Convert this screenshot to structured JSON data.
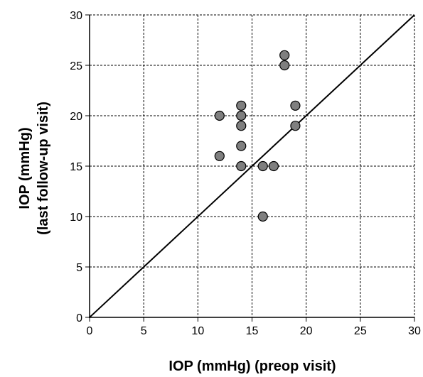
{
  "chart_data": {
    "type": "scatter",
    "title": "",
    "xlabel": "IOP (mmHg) (preop visit)",
    "ylabel_lines": [
      "IOP (mmHg)",
      "(last follow-up visit)"
    ],
    "xlim": [
      0,
      30
    ],
    "ylim": [
      0,
      30
    ],
    "xticks": [
      "0",
      "5",
      "10",
      "15",
      "20",
      "25",
      "30"
    ],
    "yticks": [
      "0",
      "5",
      "10",
      "15",
      "20",
      "25",
      "30"
    ],
    "grid": true,
    "grid_style": "dashed",
    "reference_line": {
      "type": "identity",
      "from": [
        0,
        0
      ],
      "to": [
        30,
        30
      ]
    },
    "marker_color": "#7f7f7f",
    "points": [
      {
        "x": 12,
        "y": 20
      },
      {
        "x": 12,
        "y": 16
      },
      {
        "x": 14,
        "y": 21
      },
      {
        "x": 14,
        "y": 20
      },
      {
        "x": 14,
        "y": 19
      },
      {
        "x": 14,
        "y": 17
      },
      {
        "x": 14,
        "y": 15
      },
      {
        "x": 16,
        "y": 15
      },
      {
        "x": 17,
        "y": 15
      },
      {
        "x": 16,
        "y": 10
      },
      {
        "x": 18,
        "y": 26
      },
      {
        "x": 18,
        "y": 25
      },
      {
        "x": 19,
        "y": 21
      },
      {
        "x": 19,
        "y": 19
      }
    ]
  }
}
